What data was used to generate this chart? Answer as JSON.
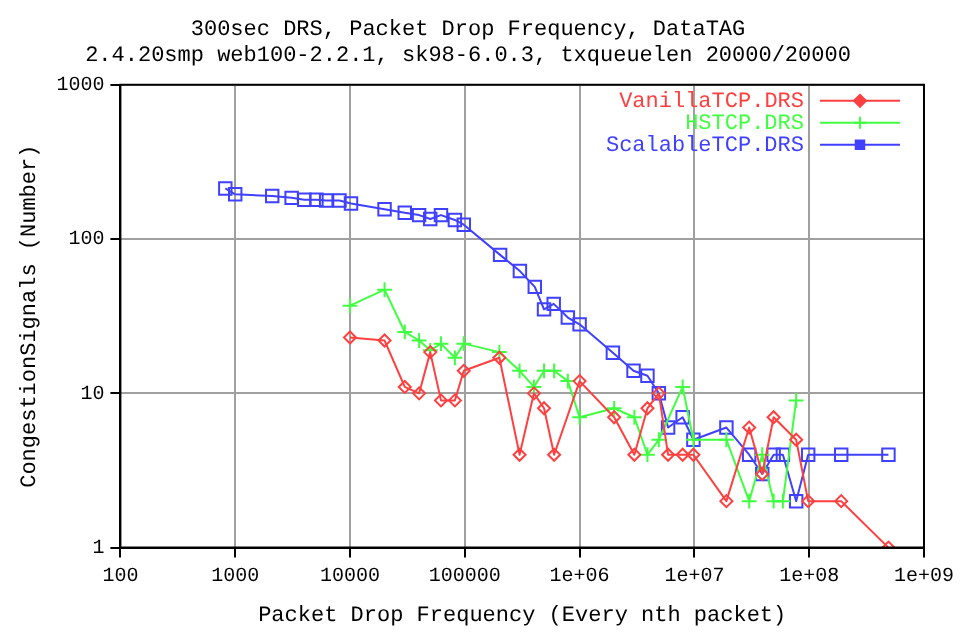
{
  "chart_data": {
    "type": "line",
    "title": "300sec DRS, Packet Drop Frequency, DataTAG",
    "subtitle": "2.4.20smp web100-2.2.1, sk98-6.0.3, txqueuelen 20000/20000",
    "xlabel": "Packet Drop Frequency (Every nth packet)",
    "ylabel": "CongestionSignals (Number)",
    "log": "xy",
    "grid": true,
    "legend": "top right",
    "xlim": [
      100,
      1000000000
    ],
    "xticks": [
      100,
      1000,
      10000,
      100000,
      {
        "value": 1000000,
        "label": "1e+06"
      },
      {
        "value": 10000000,
        "label": "1e+07"
      },
      {
        "value": 100000000,
        "label": "1e+08"
      },
      {
        "value": 1000000000,
        "label": "1e+09"
      }
    ],
    "ylim": [
      1,
      1000
    ],
    "yticks": [
      1,
      10,
      100,
      1000
    ],
    "series": [
      {
        "name": "VanillaTCP.DRS",
        "color": "#ff4040",
        "marker": "diamond",
        "x": [
          10000,
          20000,
          30000,
          40000,
          50000,
          62000,
          82000,
          98000,
          200000,
          300000,
          400000,
          490000,
          600000,
          1000000,
          2000000,
          3000000,
          3900000,
          4900000,
          5900000,
          7900000,
          9800000,
          19000000,
          30000000,
          39000000,
          49000000,
          77000000,
          98000000,
          190000000,
          490000000
        ],
        "values": [
          23,
          22,
          11,
          10,
          18.5,
          9,
          9,
          14,
          17,
          4,
          10,
          8,
          4,
          12,
          7,
          4,
          8,
          10,
          4,
          4,
          4,
          2,
          6,
          3,
          7,
          5,
          2,
          2,
          1
        ]
      },
      {
        "name": "HSTCP.DRS",
        "color": "#40ff40",
        "marker": "cross",
        "x": [
          10000,
          20000,
          30000,
          40000,
          50000,
          62000,
          82000,
          98000,
          200000,
          300000,
          400000,
          490000,
          600000,
          790000,
          1000000,
          2000000,
          3000000,
          3900000,
          4900000,
          7900000,
          9800000,
          19000000,
          30000000,
          39000000,
          49000000,
          59000000,
          77000000
        ],
        "values": [
          37,
          47,
          25,
          22,
          19,
          21,
          17,
          21,
          18.5,
          14,
          11,
          14,
          14,
          12,
          7,
          8,
          7,
          4,
          5,
          11,
          5,
          5,
          2,
          4,
          2,
          2,
          9
        ]
      },
      {
        "name": "ScalableTCP.DRS",
        "color": "#4040ff",
        "marker": "square",
        "x": [
          820,
          1000,
          2100,
          3100,
          4000,
          5100,
          6200,
          8100,
          10200,
          20000,
          30000,
          40000,
          50000,
          62000,
          82000,
          98000,
          203000,
          302000,
          407000,
          490000,
          595000,
          790000,
          1000000,
          1950000,
          2950000,
          3900000,
          4900000,
          5900000,
          7900000,
          9800000,
          19000000,
          30000000,
          39000000,
          49000000,
          59000000,
          77000000,
          98000000,
          190000000,
          490000000
        ],
        "values": [
          213,
          195,
          190,
          185,
          180,
          180,
          178,
          178,
          170,
          156,
          148,
          143,
          135,
          143,
          133,
          124,
          79,
          62,
          49,
          35,
          38,
          31,
          28,
          18.3,
          14,
          13,
          10,
          6,
          7,
          5,
          6,
          4,
          3,
          4,
          4,
          2,
          4,
          4,
          4
        ]
      }
    ]
  }
}
